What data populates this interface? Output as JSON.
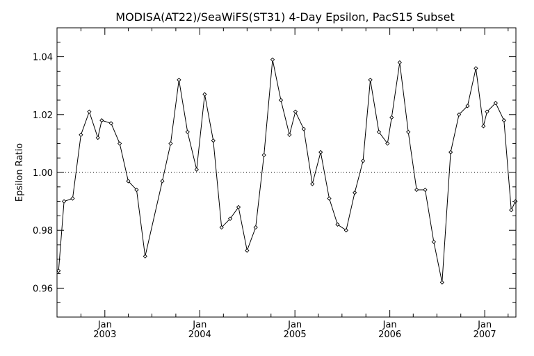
{
  "chart_data": {
    "type": "line",
    "title": "MODISA(AT22)/SeaWiFS(ST31) 4-Day Epsilon, PacS15 Subset",
    "xlabel": "",
    "ylabel": "Epsilon Ratio",
    "ylim": [
      0.95,
      1.05
    ],
    "xlim": [
      "2002-07-01",
      "2007-05-01"
    ],
    "y_ticks": [
      "0.96",
      "0.98",
      "1.00",
      "1.02",
      "1.04"
    ],
    "x_ticks": [
      {
        "month": "Jan",
        "year": "2003",
        "date": "2003-01-01"
      },
      {
        "month": "Jan",
        "year": "2004",
        "date": "2004-01-01"
      },
      {
        "month": "Jan",
        "year": "2005",
        "date": "2005-01-01"
      },
      {
        "month": "Jan",
        "year": "2006",
        "date": "2006-01-01"
      },
      {
        "month": "Jan",
        "year": "2007",
        "date": "2007-01-01"
      }
    ],
    "reference_line": 1.0,
    "series": [
      {
        "values": [
          [
            "2002-07-07",
            0.966
          ],
          [
            "2002-07-28",
            0.99
          ],
          [
            "2002-08-30",
            0.991
          ],
          [
            "2002-10-01",
            1.013
          ],
          [
            "2002-11-02",
            1.021
          ],
          [
            "2002-12-05",
            1.012
          ],
          [
            "2002-12-20",
            1.018
          ],
          [
            "2003-01-25",
            1.017
          ],
          [
            "2003-02-27",
            1.01
          ],
          [
            "2003-04-01",
            0.997
          ],
          [
            "2003-05-03",
            0.994
          ],
          [
            "2003-06-05",
            0.971
          ],
          [
            "2003-08-10",
            0.997
          ],
          [
            "2003-09-11",
            1.01
          ],
          [
            "2003-10-13",
            1.032
          ],
          [
            "2003-11-15",
            1.014
          ],
          [
            "2003-12-20",
            1.001
          ],
          [
            "2004-01-20",
            1.027
          ],
          [
            "2004-02-22",
            1.011
          ],
          [
            "2004-03-25",
            0.981
          ],
          [
            "2004-04-27",
            0.984
          ],
          [
            "2004-05-29",
            0.988
          ],
          [
            "2004-07-01",
            0.973
          ],
          [
            "2004-08-03",
            0.981
          ],
          [
            "2004-09-04",
            1.006
          ],
          [
            "2004-10-07",
            1.039
          ],
          [
            "2004-11-08",
            1.025
          ],
          [
            "2004-12-11",
            1.013
          ],
          [
            "2005-01-03",
            1.021
          ],
          [
            "2005-02-04",
            1.015
          ],
          [
            "2005-03-09",
            0.996
          ],
          [
            "2005-04-10",
            1.007
          ],
          [
            "2005-05-13",
            0.991
          ],
          [
            "2005-06-14",
            0.982
          ],
          [
            "2005-07-17",
            0.98
          ],
          [
            "2005-08-19",
            0.993
          ],
          [
            "2005-09-20",
            1.004
          ],
          [
            "2005-10-18",
            1.032
          ],
          [
            "2005-11-20",
            1.014
          ],
          [
            "2005-12-23",
            1.01
          ],
          [
            "2006-01-08",
            1.019
          ],
          [
            "2006-02-08",
            1.038
          ],
          [
            "2006-03-13",
            1.014
          ],
          [
            "2006-04-14",
            0.994
          ],
          [
            "2006-05-17",
            0.994
          ],
          [
            "2006-06-19",
            0.976
          ],
          [
            "2006-07-21",
            0.962
          ],
          [
            "2006-08-23",
            1.007
          ],
          [
            "2006-09-24",
            1.02
          ],
          [
            "2006-10-27",
            1.023
          ],
          [
            "2006-11-28",
            1.036
          ],
          [
            "2006-12-27",
            1.016
          ],
          [
            "2007-01-10",
            1.021
          ],
          [
            "2007-02-12",
            1.024
          ],
          [
            "2007-03-16",
            1.018
          ],
          [
            "2007-04-13",
            0.987
          ],
          [
            "2007-04-29",
            0.99
          ]
        ]
      }
    ]
  }
}
